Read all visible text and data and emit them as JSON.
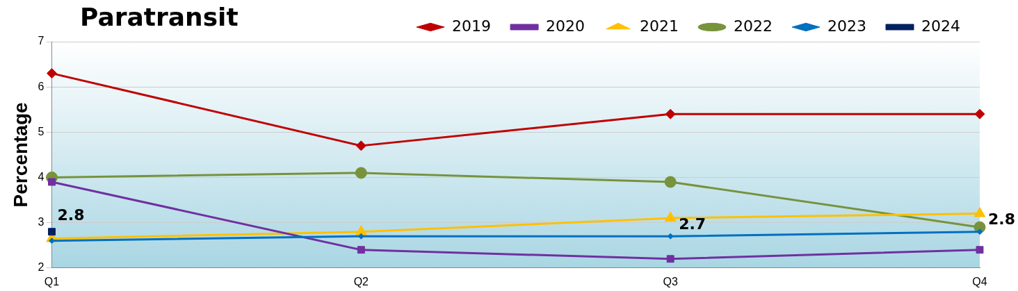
{
  "chart_data": {
    "type": "line",
    "title": "Paratransit",
    "ylabel": "Percentage",
    "categories": [
      "Q1",
      "Q2",
      "Q3",
      "Q4"
    ],
    "series": [
      {
        "name": "2019",
        "color": "#c00000",
        "marker": "diamond",
        "values": [
          6.3,
          4.7,
          5.4,
          5.4
        ]
      },
      {
        "name": "2020",
        "color": "#7030a0",
        "marker": "square",
        "values": [
          3.9,
          2.4,
          2.2,
          2.4
        ]
      },
      {
        "name": "2021",
        "color": "#ffc000",
        "marker": "triangle",
        "values": [
          2.65,
          2.8,
          3.1,
          3.2
        ]
      },
      {
        "name": "2022",
        "color": "#77933c",
        "marker": "circle",
        "values": [
          4.0,
          4.1,
          3.9,
          2.9
        ]
      },
      {
        "name": "2023",
        "color": "#0070c0",
        "marker": "diamond",
        "values": [
          2.6,
          2.7,
          2.7,
          2.8
        ],
        "value_labels": [
          null,
          null,
          "2.7",
          "2.8"
        ]
      },
      {
        "name": "2024",
        "color": "#002060",
        "marker": "square",
        "values": [
          2.8,
          null,
          null,
          null
        ],
        "value_labels": [
          "2.8",
          null,
          null,
          null
        ]
      }
    ],
    "ylim": [
      2,
      7
    ],
    "yticks": [
      2,
      3,
      4,
      5,
      6,
      7
    ],
    "grid": "y",
    "legend": "top right"
  }
}
